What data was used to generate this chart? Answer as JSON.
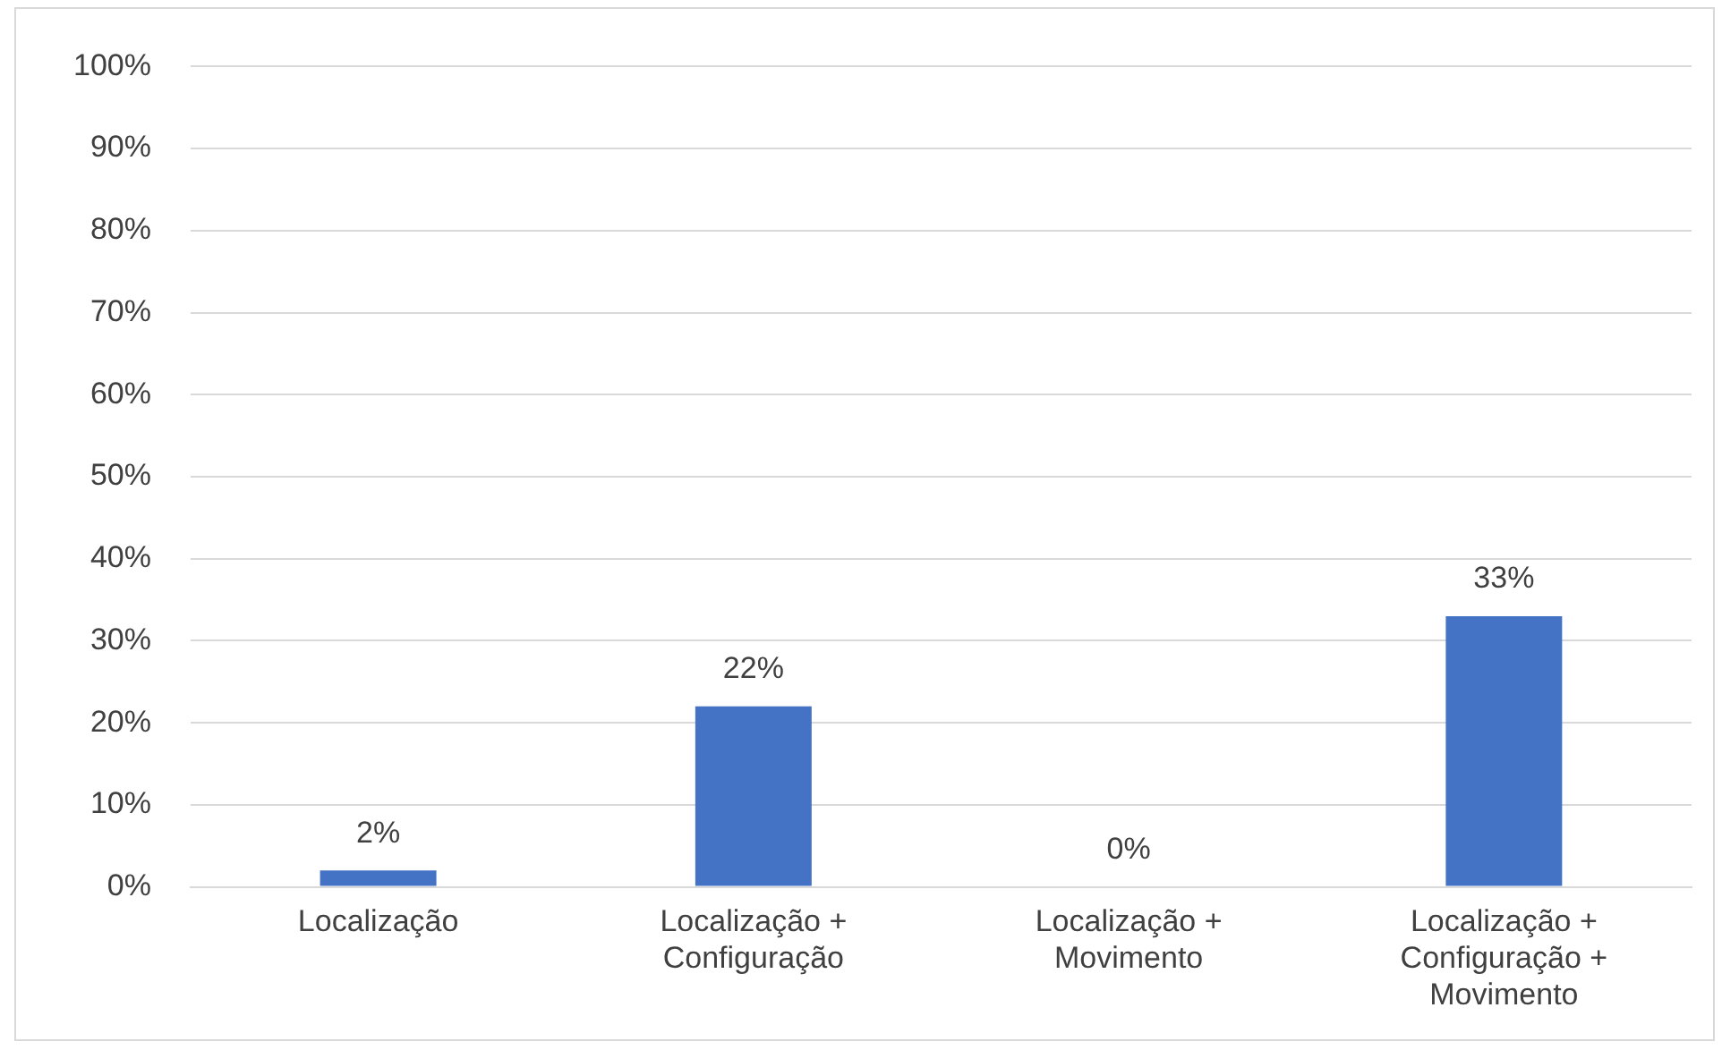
{
  "chart_data": {
    "type": "bar",
    "categories": [
      "Localização",
      "Localização + Configuração",
      "Localização + Movimento",
      "Localização + Configuração + Movimento"
    ],
    "values": [
      2,
      22,
      0,
      33
    ],
    "value_labels": [
      "2%",
      "22%",
      "0%",
      "33%"
    ],
    "color": "#4472c4",
    "ylim": [
      0,
      100
    ],
    "yticks": [
      {
        "value": 0,
        "label": "0%"
      },
      {
        "value": 10,
        "label": "10%"
      },
      {
        "value": 20,
        "label": "20%"
      },
      {
        "value": 30,
        "label": "30%"
      },
      {
        "value": 40,
        "label": "40%"
      },
      {
        "value": 50,
        "label": "50%"
      },
      {
        "value": 60,
        "label": "60%"
      },
      {
        "value": 70,
        "label": "70%"
      },
      {
        "value": 80,
        "label": "80%"
      },
      {
        "value": 90,
        "label": "90%"
      },
      {
        "value": 100,
        "label": "100%"
      }
    ],
    "grid": "y"
  }
}
